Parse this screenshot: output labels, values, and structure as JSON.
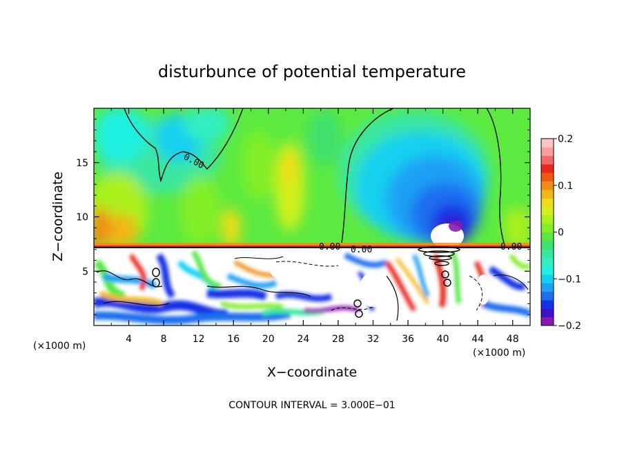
{
  "chart_data": {
    "type": "heatmap",
    "title": "disturbunce of potential temperature",
    "xlabel": "X−coordinate",
    "ylabel": "Z−coordinate",
    "x_unit": "(×1000 m)",
    "x_unit_right": "(×1000 m)",
    "xlim": [
      0,
      50
    ],
    "ylim": [
      0,
      20
    ],
    "x_ticks": [
      {
        "value": 4,
        "label": "4"
      },
      {
        "value": 8,
        "label": "8"
      },
      {
        "value": 12,
        "label": "12"
      },
      {
        "value": 16,
        "label": "16"
      },
      {
        "value": 20,
        "label": "20"
      },
      {
        "value": 24,
        "label": "24"
      },
      {
        "value": 28,
        "label": "28"
      },
      {
        "value": 32,
        "label": "32"
      },
      {
        "value": 36,
        "label": "36"
      },
      {
        "value": 40,
        "label": "40"
      },
      {
        "value": 44,
        "label": "44"
      },
      {
        "value": 48,
        "label": "48"
      }
    ],
    "y_ticks": [
      {
        "value": 5,
        "label": "5"
      },
      {
        "value": 10,
        "label": "10"
      },
      {
        "value": 15,
        "label": "15"
      }
    ],
    "colorbar": {
      "range": [
        -0.2,
        0.2
      ],
      "ticks": [
        {
          "value": 0.2,
          "label": "0.2"
        },
        {
          "value": 0.1,
          "label": "0.1"
        },
        {
          "value": 0,
          "label": "0"
        },
        {
          "value": -0.1,
          "label": "−0.1"
        },
        {
          "value": -0.2,
          "label": "−0.2"
        }
      ],
      "colors": [
        "#8a19b0",
        "#3a12c8",
        "#1632e6",
        "#1e6ef0",
        "#1ea0f5",
        "#14d0f0",
        "#1ef0e0",
        "#32eec0",
        "#3ae6a0",
        "#40e06c",
        "#58e648",
        "#82ee28",
        "#aaf01c",
        "#d2f01e",
        "#eedc18",
        "#f0b614",
        "#f08c12",
        "#ee5c12",
        "#e8281a",
        "#f06a6a",
        "#f8a0a0",
        "#fcc4c4"
      ]
    },
    "contour_labels": [
      "0.00",
      "0.00",
      "0.00",
      "0.00"
    ],
    "contour_interval": "CONTOUR INTERVAL = 3.000E−01"
  }
}
